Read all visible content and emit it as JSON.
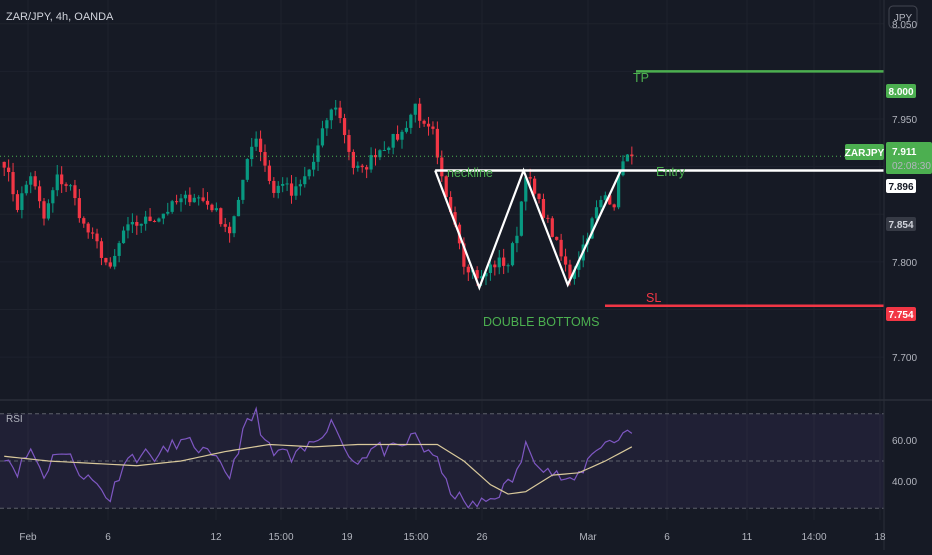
{
  "header": {
    "symbol_title": "ZAR/JPY, 4h, OANDA"
  },
  "currency_button": {
    "label": "JPY"
  },
  "colors": {
    "background": "#161a25",
    "up": "#26a69a",
    "up_green": "#4caf50",
    "down": "#ef5350",
    "tp_line": "#4caf50",
    "sl_line": "#f23645",
    "pattern": "#ffffff",
    "rsi_line": "#7e57c2",
    "rsi_ma": "#d9c99b",
    "annotation": "#4caf50"
  },
  "annotations": {
    "tp": "TP",
    "sl": "SL",
    "entry": "Entry",
    "neckline": "neckline",
    "pattern": "DOUBLE BOTTOMS"
  },
  "price_tags": {
    "tp": "8.000",
    "entry": "7.896",
    "sl": "7.754",
    "last_close": "7.854",
    "symbol": "ZARJPY",
    "current_price": "7.911",
    "countdown": "02:08:30"
  },
  "rsi_panel": {
    "label": "RSI",
    "ticks": [
      "60.00",
      "40.00"
    ]
  },
  "chart_data": {
    "type": "candlestick",
    "title": "ZAR/JPY, 4h, OANDA",
    "y_ticks": [
      "8.050",
      "7.950",
      "7.800",
      "7.700"
    ],
    "ylim": [
      7.655,
      8.075
    ],
    "x_ticks": [
      "Feb",
      "6",
      "12",
      "15:00",
      "19",
      "15:00",
      "26",
      "Mar",
      "6",
      "11",
      "14:00",
      "18"
    ],
    "levels": {
      "tp": 8.0,
      "entry": 7.896,
      "sl": 7.754,
      "current": 7.911
    },
    "neckline": 7.896,
    "double_bottom_pattern": [
      {
        "bar": 98,
        "price": 7.896
      },
      {
        "bar": 108,
        "price": 7.773
      },
      {
        "bar": 118,
        "price": 7.896
      },
      {
        "bar": 128,
        "price": 7.776
      },
      {
        "bar": 140,
        "price": 7.896
      }
    ],
    "ohlc_path": [
      [
        0,
        7.905
      ],
      [
        3,
        7.858
      ],
      [
        6,
        7.892
      ],
      [
        9,
        7.845
      ],
      [
        12,
        7.888
      ],
      [
        15,
        7.878
      ],
      [
        18,
        7.838
      ],
      [
        21,
        7.818
      ],
      [
        24,
        7.79
      ],
      [
        27,
        7.832
      ],
      [
        31,
        7.842
      ],
      [
        35,
        7.848
      ],
      [
        39,
        7.862
      ],
      [
        43,
        7.87
      ],
      [
        47,
        7.858
      ],
      [
        51,
        7.832
      ],
      [
        53,
        7.86
      ],
      [
        55,
        7.912
      ],
      [
        57,
        7.932
      ],
      [
        59,
        7.902
      ],
      [
        61,
        7.872
      ],
      [
        63,
        7.885
      ],
      [
        65,
        7.87
      ],
      [
        67,
        7.88
      ],
      [
        70,
        7.905
      ],
      [
        73,
        7.95
      ],
      [
        75,
        7.965
      ],
      [
        77,
        7.935
      ],
      [
        79,
        7.9
      ],
      [
        81,
        7.895
      ],
      [
        84,
        7.915
      ],
      [
        87,
        7.925
      ],
      [
        90,
        7.935
      ],
      [
        93,
        7.965
      ],
      [
        95,
        7.94
      ],
      [
        97,
        7.935
      ],
      [
        98,
        7.905
      ],
      [
        100,
        7.865
      ],
      [
        102,
        7.845
      ],
      [
        104,
        7.8
      ],
      [
        106,
        7.79
      ],
      [
        108,
        7.782
      ],
      [
        110,
        7.795
      ],
      [
        112,
        7.8
      ],
      [
        114,
        7.798
      ],
      [
        116,
        7.832
      ],
      [
        118,
        7.895
      ],
      [
        120,
        7.87
      ],
      [
        122,
        7.852
      ],
      [
        124,
        7.83
      ],
      [
        126,
        7.805
      ],
      [
        128,
        7.785
      ],
      [
        130,
        7.805
      ],
      [
        132,
        7.83
      ],
      [
        134,
        7.855
      ],
      [
        136,
        7.87
      ],
      [
        138,
        7.862
      ],
      [
        140,
        7.91
      ],
      [
        142,
        7.911
      ]
    ],
    "rsi": {
      "ylim": [
        25,
        75
      ],
      "levels": [
        70,
        50,
        30
      ],
      "values": [
        [
          0,
          53
        ],
        [
          3,
          46
        ],
        [
          6,
          55
        ],
        [
          9,
          44
        ],
        [
          12,
          55
        ],
        [
          15,
          51
        ],
        [
          18,
          44
        ],
        [
          21,
          40
        ],
        [
          24,
          34
        ],
        [
          27,
          50
        ],
        [
          31,
          53
        ],
        [
          35,
          52
        ],
        [
          39,
          58
        ],
        [
          43,
          57
        ],
        [
          47,
          51
        ],
        [
          51,
          44
        ],
        [
          53,
          56
        ],
        [
          55,
          66
        ],
        [
          57,
          70
        ],
        [
          59,
          58
        ],
        [
          61,
          52
        ],
        [
          63,
          55
        ],
        [
          65,
          50
        ],
        [
          67,
          53
        ],
        [
          70,
          58
        ],
        [
          73,
          65
        ],
        [
          75,
          66
        ],
        [
          77,
          55
        ],
        [
          79,
          50
        ],
        [
          81,
          52
        ],
        [
          84,
          56
        ],
        [
          87,
          54
        ],
        [
          90,
          56
        ],
        [
          93,
          61
        ],
        [
          95,
          55
        ],
        [
          97,
          54
        ],
        [
          98,
          49
        ],
        [
          100,
          40
        ],
        [
          102,
          36
        ],
        [
          104,
          32
        ],
        [
          106,
          31
        ],
        [
          108,
          32
        ],
        [
          110,
          34
        ],
        [
          112,
          37
        ],
        [
          114,
          40
        ],
        [
          116,
          45
        ],
        [
          118,
          56
        ],
        [
          120,
          52
        ],
        [
          122,
          48
        ],
        [
          124,
          45
        ],
        [
          126,
          43
        ],
        [
          128,
          40
        ],
        [
          130,
          44
        ],
        [
          132,
          50
        ],
        [
          134,
          56
        ],
        [
          136,
          58
        ],
        [
          138,
          58
        ],
        [
          140,
          62
        ],
        [
          142,
          64
        ]
      ],
      "ma_values": [
        [
          0,
          52
        ],
        [
          10,
          50
        ],
        [
          20,
          49
        ],
        [
          30,
          48
        ],
        [
          40,
          50
        ],
        [
          50,
          54
        ],
        [
          60,
          57
        ],
        [
          70,
          56
        ],
        [
          80,
          57
        ],
        [
          90,
          57
        ],
        [
          98,
          57
        ],
        [
          104,
          50
        ],
        [
          110,
          40
        ],
        [
          114,
          36
        ],
        [
          118,
          37
        ],
        [
          124,
          44
        ],
        [
          130,
          45
        ],
        [
          136,
          50
        ],
        [
          142,
          56
        ]
      ]
    }
  }
}
